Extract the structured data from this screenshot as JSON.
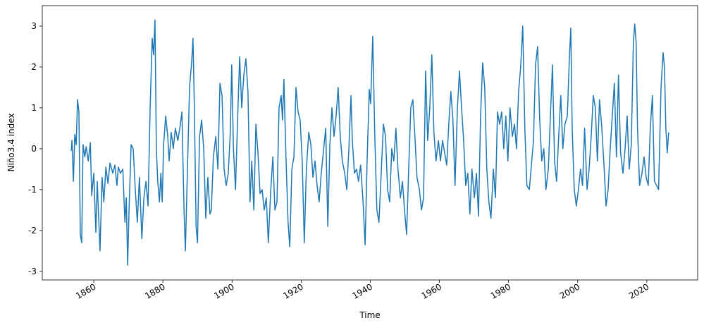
{
  "chart_data": {
    "type": "line",
    "x_label": "Time",
    "y_label": "Niño3.4 index",
    "color": "#1f77b4",
    "xlim": [
      1845.1,
      2034.7
    ],
    "ylim": [
      -3.21,
      3.5
    ],
    "xticks": [
      1860,
      1880,
      1900,
      1920,
      1940,
      1960,
      1980,
      2000,
      2020
    ],
    "yticks": [
      -3,
      -2,
      -1,
      0,
      1,
      2,
      3
    ],
    "x": [
      1853.5,
      1853.7,
      1854.1,
      1854.5,
      1854.9,
      1855.3,
      1855.7,
      1856.1,
      1856.5,
      1856.9,
      1857.4,
      1857.8,
      1858.4,
      1859.0,
      1859.4,
      1860.0,
      1860.6,
      1861.0,
      1861.8,
      1862.4,
      1862.9,
      1863.5,
      1864.1,
      1864.7,
      1865.5,
      1866.1,
      1866.7,
      1867.1,
      1867.7,
      1868.4,
      1869.0,
      1869.4,
      1869.8,
      1870.2,
      1870.8,
      1871.4,
      1872.0,
      1872.6,
      1873.2,
      1873.9,
      1874.5,
      1875.1,
      1875.7,
      1876.3,
      1876.9,
      1877.3,
      1877.7,
      1878.1,
      1878.5,
      1879.0,
      1879.4,
      1879.8,
      1880.2,
      1880.8,
      1881.4,
      1881.8,
      1882.4,
      1883.0,
      1883.6,
      1884.3,
      1884.9,
      1885.5,
      1886.1,
      1886.5,
      1887.1,
      1887.7,
      1888.3,
      1888.7,
      1889.1,
      1889.6,
      1890.0,
      1890.6,
      1891.2,
      1891.8,
      1892.4,
      1893.0,
      1893.6,
      1894.0,
      1894.6,
      1895.3,
      1895.9,
      1896.5,
      1897.1,
      1897.7,
      1898.3,
      1898.9,
      1899.5,
      1899.9,
      1900.4,
      1901.0,
      1901.6,
      1902.2,
      1902.8,
      1903.4,
      1904.0,
      1904.6,
      1905.2,
      1905.7,
      1906.3,
      1906.9,
      1907.5,
      1908.1,
      1908.7,
      1909.3,
      1909.9,
      1910.5,
      1911.2,
      1911.8,
      1912.4,
      1913.0,
      1913.6,
      1914.2,
      1914.6,
      1915.0,
      1915.6,
      1916.2,
      1916.7,
      1917.3,
      1917.9,
      1918.5,
      1919.1,
      1919.7,
      1920.3,
      1920.9,
      1921.5,
      1922.2,
      1922.8,
      1923.4,
      1924.0,
      1924.6,
      1925.2,
      1925.8,
      1926.4,
      1927.1,
      1927.7,
      1928.3,
      1928.9,
      1929.5,
      1930.1,
      1930.7,
      1931.3,
      1931.9,
      1932.6,
      1933.2,
      1933.8,
      1934.4,
      1934.8,
      1935.4,
      1936.0,
      1936.6,
      1937.2,
      1937.9,
      1938.5,
      1939.1,
      1939.7,
      1940.1,
      1940.7,
      1941.3,
      1941.9,
      1942.5,
      1943.2,
      1943.8,
      1944.4,
      1945.0,
      1945.6,
      1946.2,
      1946.8,
      1947.4,
      1948.0,
      1948.7,
      1949.3,
      1949.9,
      1950.5,
      1951.1,
      1951.7,
      1952.3,
      1952.9,
      1953.5,
      1954.2,
      1954.8,
      1955.4,
      1956.0,
      1956.6,
      1957.2,
      1957.8,
      1958.4,
      1959.0,
      1959.7,
      1960.3,
      1960.9,
      1961.5,
      1962.1,
      1962.7,
      1963.3,
      1963.9,
      1964.5,
      1965.2,
      1965.8,
      1966.4,
      1967.0,
      1967.6,
      1968.2,
      1968.8,
      1969.4,
      1970.1,
      1970.7,
      1971.3,
      1971.9,
      1972.5,
      1973.1,
      1973.7,
      1974.3,
      1974.9,
      1975.6,
      1976.2,
      1976.8,
      1977.4,
      1978.0,
      1978.6,
      1979.2,
      1979.8,
      1980.4,
      1981.1,
      1981.7,
      1982.3,
      1982.9,
      1983.5,
      1984.1,
      1984.7,
      1985.3,
      1986.0,
      1986.6,
      1987.2,
      1987.8,
      1988.4,
      1989.0,
      1989.6,
      1990.2,
      1990.8,
      1991.5,
      1992.1,
      1992.7,
      1993.3,
      1993.9,
      1994.5,
      1995.1,
      1995.7,
      1996.3,
      1997.0,
      1997.6,
      1998.0,
      1998.4,
      1999.0,
      1999.6,
      2000.2,
      2000.8,
      2001.4,
      2002.0,
      2002.7,
      2003.3,
      2003.9,
      2004.5,
      2005.1,
      2005.7,
      2006.3,
      2006.9,
      2007.6,
      2008.2,
      2008.8,
      2009.4,
      2010.0,
      2010.6,
      2011.2,
      2011.8,
      2012.4,
      2013.1,
      2013.7,
      2014.3,
      2014.9,
      2015.5,
      2016.1,
      2016.5,
      2016.9,
      2017.3,
      2017.9,
      2018.6,
      2019.2,
      2019.8,
      2020.4,
      2021.0,
      2021.6,
      2022.2,
      2022.8,
      2023.4,
      2024.1,
      2024.7,
      2025.1,
      2025.5,
      2025.9,
      2026.3
    ],
    "values": [
      -0.05,
      0.2,
      -0.8,
      0.35,
      0.1,
      1.2,
      0.9,
      -2.1,
      -2.3,
      0.1,
      -0.2,
      0.05,
      -0.3,
      0.15,
      -1.15,
      -0.6,
      -2.05,
      -0.8,
      -2.5,
      -0.7,
      -1.3,
      -0.45,
      -0.85,
      -0.35,
      -0.6,
      -0.4,
      -0.9,
      -0.45,
      -0.6,
      -0.5,
      -1.8,
      -1.2,
      -2.85,
      -1.5,
      0.1,
      0.0,
      -1.0,
      -1.8,
      -0.7,
      -2.2,
      -1.2,
      -0.8,
      -1.4,
      1.0,
      2.7,
      2.3,
      3.15,
      0.0,
      -0.8,
      -1.3,
      -0.6,
      -1.3,
      0.1,
      0.8,
      0.3,
      -0.3,
      0.4,
      0.0,
      0.5,
      0.2,
      0.5,
      0.9,
      -1.5,
      -2.5,
      -0.5,
      1.5,
      2.1,
      2.7,
      1.0,
      -1.9,
      -2.3,
      0.3,
      0.7,
      0.0,
      -1.7,
      -0.7,
      -1.6,
      -1.5,
      -0.2,
      0.3,
      -0.5,
      1.6,
      1.3,
      -0.5,
      -0.9,
      -0.6,
      0.4,
      2.05,
      0.0,
      -1.0,
      0.7,
      2.25,
      1.0,
      1.8,
      2.2,
      1.4,
      -1.3,
      -0.3,
      -1.5,
      0.6,
      -0.1,
      -1.1,
      -1.0,
      -1.5,
      -1.2,
      -2.3,
      -1.0,
      -0.2,
      -1.5,
      -1.3,
      1.0,
      1.3,
      0.7,
      1.7,
      -0.2,
      -1.8,
      -2.4,
      -0.5,
      -0.2,
      1.5,
      0.9,
      0.7,
      -0.3,
      -2.3,
      -0.5,
      0.4,
      0.1,
      -0.7,
      -0.3,
      -0.9,
      -1.3,
      -0.6,
      -0.1,
      0.5,
      -1.9,
      0.1,
      1.0,
      0.3,
      0.8,
      1.5,
      0.3,
      -0.3,
      -0.6,
      -1.0,
      0.0,
      1.3,
      0.2,
      -0.6,
      -0.5,
      -0.8,
      -0.4,
      -1.3,
      -2.35,
      -0.2,
      1.45,
      1.1,
      2.75,
      0.3,
      -1.5,
      -1.8,
      -0.5,
      0.6,
      0.3,
      -1.0,
      -1.3,
      0.0,
      -0.3,
      0.5,
      -0.5,
      -1.2,
      -0.8,
      -1.5,
      -2.1,
      -0.5,
      1.0,
      1.2,
      0.3,
      -0.7,
      -1.0,
      -1.5,
      -1.2,
      1.9,
      0.2,
      1.0,
      2.3,
      0.4,
      -0.3,
      0.2,
      -0.3,
      0.2,
      -0.1,
      -0.4,
      0.6,
      1.4,
      0.7,
      -0.9,
      1.0,
      1.9,
      1.0,
      0.2,
      -0.9,
      -0.6,
      -1.6,
      -0.5,
      -1.2,
      -0.6,
      -1.65,
      0.8,
      2.1,
      1.5,
      -0.5,
      -1.3,
      -1.7,
      -0.5,
      -1.2,
      0.9,
      0.6,
      0.9,
      0.0,
      0.8,
      -0.3,
      1.0,
      0.3,
      0.6,
      0.0,
      1.4,
      2.0,
      3.0,
      0.5,
      -0.9,
      -1.0,
      -0.4,
      0.2,
      2.05,
      2.5,
      0.7,
      -0.3,
      0.0,
      -1.0,
      -0.5,
      0.8,
      2.05,
      -0.3,
      -0.8,
      0.3,
      1.3,
      0.0,
      0.6,
      0.8,
      2.25,
      2.95,
      0.5,
      -1.0,
      -1.4,
      -1.0,
      -0.5,
      -0.9,
      0.5,
      -1.0,
      -0.5,
      0.3,
      1.3,
      1.0,
      -0.3,
      1.2,
      0.6,
      -0.4,
      -1.4,
      -1.0,
      0.0,
      0.8,
      1.6,
      -0.2,
      1.8,
      -0.1,
      -0.6,
      0.0,
      0.8,
      -0.5,
      0.1,
      2.6,
      3.05,
      2.6,
      0.5,
      -0.9,
      -0.6,
      -0.2,
      -0.7,
      -0.9,
      0.5,
      1.3,
      -0.8,
      -0.9,
      -1.0,
      1.5,
      2.35,
      2.0,
      0.5,
      -0.1,
      0.4
    ]
  }
}
